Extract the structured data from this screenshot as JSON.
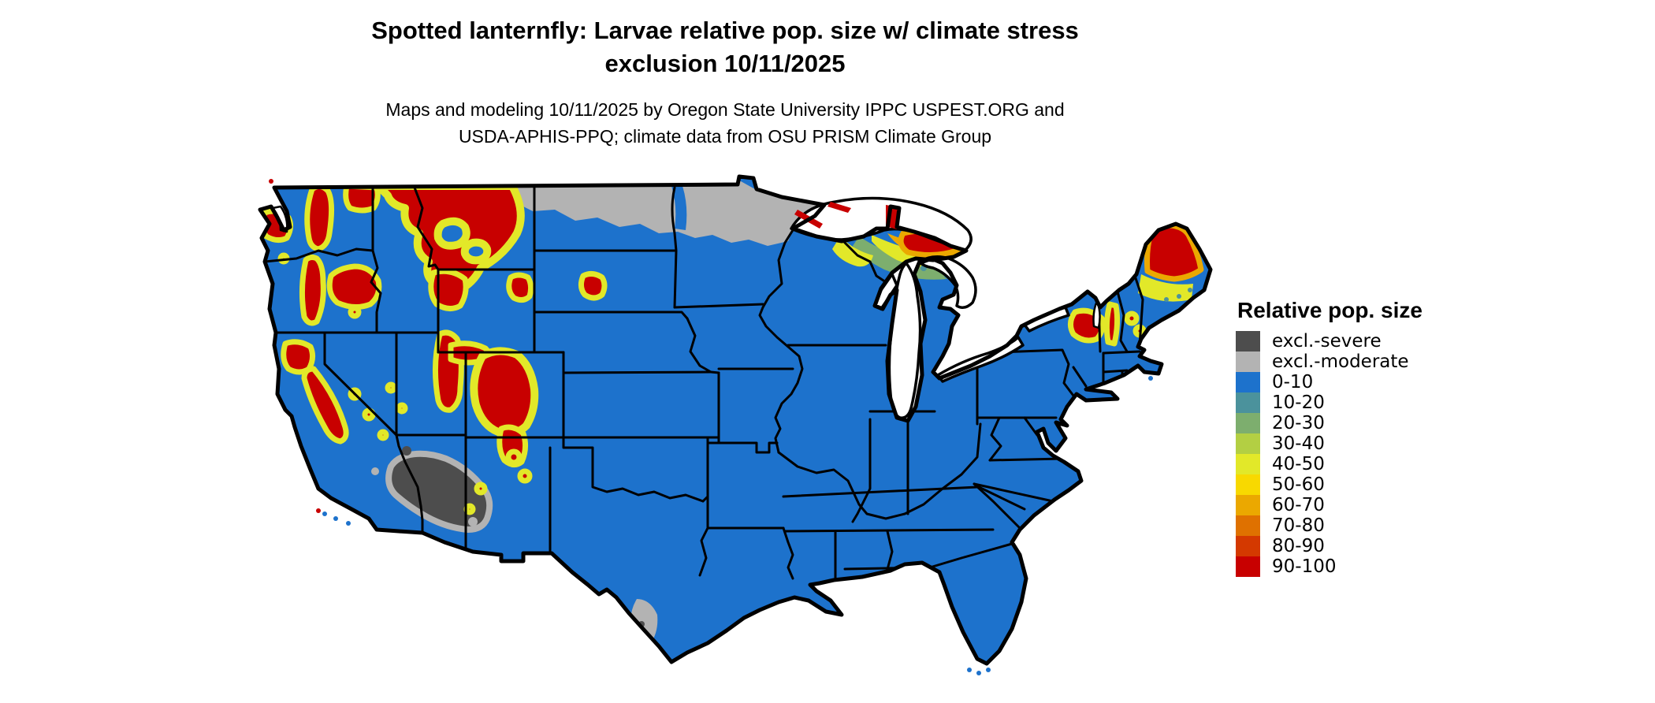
{
  "header": {
    "title_line1": "Spotted lanternfly: Larvae relative pop. size w/ climate stress",
    "title_line2": "exclusion 10/11/2025",
    "subtitle_line1": "Maps and modeling 10/11/2025 by Oregon State University IPPC USPEST.ORG and",
    "subtitle_line2": "USDA-APHIS-PPQ; climate data from OSU PRISM Climate Group"
  },
  "legend": {
    "title": "Relative pop. size",
    "items": [
      {
        "key": "sev",
        "label": "excl.-severe",
        "color": "#4d4d4d"
      },
      {
        "key": "mod",
        "label": "excl.-moderate",
        "color": "#b3b3b3"
      },
      {
        "key": "b0",
        "label": "0-10",
        "color": "#1d72cc"
      },
      {
        "key": "b10",
        "label": "10-20",
        "color": "#4b929c"
      },
      {
        "key": "b20",
        "label": "20-30",
        "color": "#7dae6e"
      },
      {
        "key": "b30",
        "label": "30-40",
        "color": "#b3cf43"
      },
      {
        "key": "b40",
        "label": "40-50",
        "color": "#e2e829"
      },
      {
        "key": "b50",
        "label": "50-60",
        "color": "#f8d900"
      },
      {
        "key": "b60",
        "label": "60-70",
        "color": "#eba800"
      },
      {
        "key": "b70",
        "label": "70-80",
        "color": "#df7100"
      },
      {
        "key": "b80",
        "label": "80-90",
        "color": "#d43900"
      },
      {
        "key": "b90",
        "label": "90-100",
        "color": "#c80000"
      }
    ]
  },
  "map": {
    "name": "Contiguous United States raster of spotted lanternfly larvae relative population size",
    "base_class": "0-10",
    "regions_summary": [
      {
        "area": "Eastern and central US lowlands",
        "class": "0-10"
      },
      {
        "area": "Northern Montana, North Dakota, northern Minnesota",
        "class": "excl.-moderate"
      },
      {
        "area": "Southeast California desert and southwest Arizona",
        "class": "excl.-severe"
      },
      {
        "area": "Cascades, Sierra Nevada, northern Rockies, Wasatch, Colorado Rockies, Black Hills",
        "class": "90-100 with 40-60 fringes"
      },
      {
        "area": "Upper Peninsula of Michigan along Lake Superior",
        "class": "60-100 grading to 20-50"
      },
      {
        "area": "Northern Maine, Adirondacks, Green and White Mountains",
        "class": "90-100 grading to 40-60"
      },
      {
        "area": "South Texas along Rio Grande",
        "class": "excl.-moderate"
      }
    ]
  }
}
